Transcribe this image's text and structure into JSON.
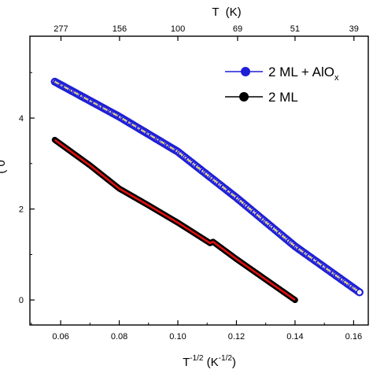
{
  "chart_data": {
    "type": "scatter",
    "xlabel": {
      "base": "T",
      "sup": "-1/2",
      "unit_open": " (K",
      "unit_sup": "-1/2",
      "unit_close": ")"
    },
    "top_xlabel": "T  (K)",
    "ylabel": "",
    "ylabel_fragment": "( 0",
    "xlim": [
      0.0495,
      0.165
    ],
    "ylim": [
      -0.55,
      5.8
    ],
    "x_ticks": [
      0.06,
      0.08,
      0.1,
      0.12,
      0.14,
      0.16
    ],
    "x_tick_labels": [
      "0.06",
      "0.08",
      "0.10",
      "0.12",
      "0.14",
      "0.16"
    ],
    "y_ticks": [
      0,
      2,
      4
    ],
    "y_tick_labels": [
      "0",
      "2",
      "4"
    ],
    "top_ticks": [
      {
        "label": "277",
        "x": 0.0601
      },
      {
        "label": "156",
        "x": 0.0801
      },
      {
        "label": "100",
        "x": 0.1
      },
      {
        "label": "69",
        "x": 0.1204
      },
      {
        "label": "51",
        "x": 0.14
      },
      {
        "label": "39",
        "x": 0.1601
      }
    ],
    "legend_position": "top-right",
    "series": [
      {
        "name": "2 ML + AlOx",
        "legend": {
          "main": "2 ML + AlO",
          "sub": "x"
        },
        "marker_color": "#1f1fd6",
        "line_color": "#1f1fd6",
        "fit_color": "#e6d27a",
        "points": [
          [
            0.058,
            4.8
          ],
          [
            0.08,
            4.03
          ],
          [
            0.1,
            3.26
          ],
          [
            0.117,
            2.4
          ],
          [
            0.12,
            2.25
          ],
          [
            0.14,
            1.18
          ],
          [
            0.162,
            0.17
          ]
        ]
      },
      {
        "name": "2 ML",
        "legend": {
          "main": "2 ML",
          "sub": ""
        },
        "marker_color": "#000000",
        "line_color": "#000000",
        "fit_color": "#e01010",
        "points": [
          [
            0.058,
            3.52
          ],
          [
            0.07,
            2.96
          ],
          [
            0.08,
            2.45
          ],
          [
            0.09,
            2.08
          ],
          [
            0.1,
            1.7
          ],
          [
            0.111,
            1.25
          ],
          [
            0.112,
            1.28
          ],
          [
            0.12,
            0.9
          ],
          [
            0.13,
            0.45
          ],
          [
            0.14,
            0.0
          ]
        ]
      }
    ]
  }
}
